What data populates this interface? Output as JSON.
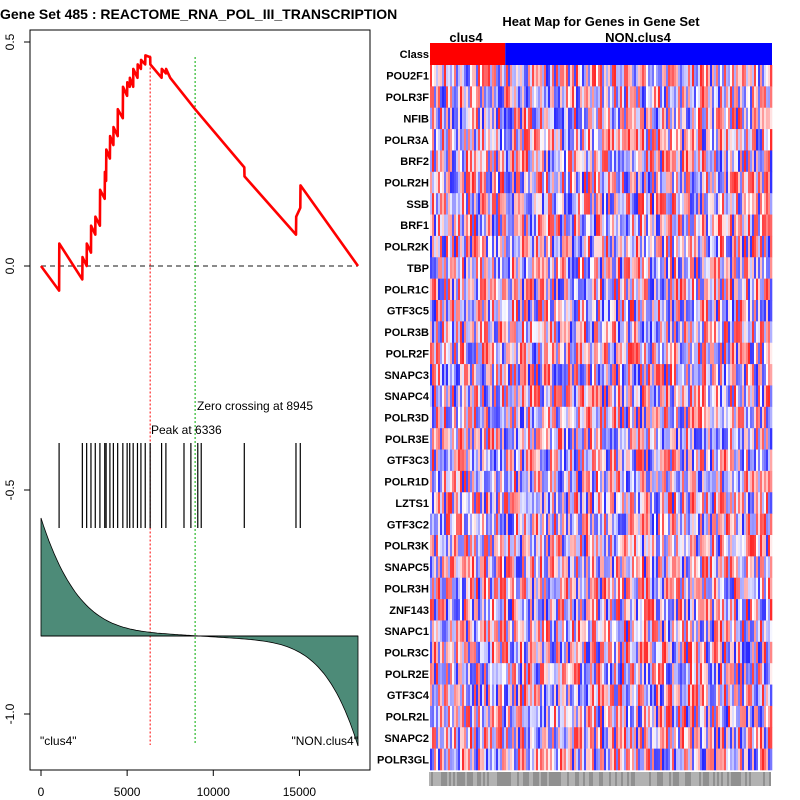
{
  "left_panel": {
    "title": "Gene Set  485 : REACTOME_RNA_POL_III_TRANSCRIPTION",
    "peak_label": "Peak at 6336",
    "zero_label": "Zero crossing at 8945",
    "class_left": "\"clus4\"",
    "class_right": "\"NON.clus4\""
  },
  "right_panel": {
    "title": "Heat Map for Genes in Gene Set",
    "class_row_label": "Class",
    "group_left": "clus4",
    "group_right": "NON.clus4",
    "genes": [
      "POU2F1",
      "POLR3F",
      "NFIB",
      "POLR3A",
      "BRF2",
      "POLR2H",
      "SSB",
      "BRF1",
      "POLR2K",
      "TBP",
      "POLR1C",
      "GTF3C5",
      "POLR3B",
      "POLR2F",
      "SNAPC3",
      "SNAPC4",
      "POLR3D",
      "POLR3E",
      "GTF3C3",
      "POLR1D",
      "LZTS1",
      "GTF3C2",
      "POLR3K",
      "SNAPC5",
      "POLR3H",
      "ZNF143",
      "SNAPC1",
      "POLR3C",
      "POLR2E",
      "GTF3C4",
      "POLR2L",
      "SNAPC2",
      "POLR3GL"
    ]
  },
  "colors": {
    "es_line": "#ff0000",
    "peak_line": "#ff0000",
    "zero_line": "#00aa00",
    "metric_fill": "#4d8b78",
    "class_a": "#ff0000",
    "class_b": "#0000ff"
  },
  "chart_data": [
    {
      "type": "line",
      "title": "Gene Set  485 : REACTOME_RNA_POL_III_TRANSCRIPTION",
      "xlabel": "",
      "ylabel": "",
      "xlim": [
        0,
        18400
      ],
      "ylim": [
        -1.07,
        0.52
      ],
      "x_ticks": [
        0,
        5000,
        10000,
        15000
      ],
      "y_ticks": [
        -1.0,
        -0.5,
        0.0,
        0.5
      ],
      "series": [
        {
          "name": "Running enrichment score",
          "x": [
            0,
            1050,
            1060,
            2400,
            2410,
            2650,
            2660,
            2900,
            2910,
            3150,
            3160,
            3420,
            3430,
            3700,
            3710,
            3780,
            3790,
            4000,
            4010,
            4200,
            4210,
            4450,
            4460,
            4750,
            4760,
            5000,
            5010,
            5150,
            5160,
            5350,
            5360,
            5600,
            5610,
            5800,
            5810,
            6050,
            6060,
            6336,
            6346,
            7000,
            7010,
            7250,
            7260,
            7500,
            8945,
            11800,
            11810,
            14800,
            14810,
            15050,
            15060,
            18400
          ],
          "values": [
            0.0,
            -0.055,
            0.05,
            -0.03,
            0.02,
            0.0,
            0.05,
            0.03,
            0.09,
            0.07,
            0.11,
            0.09,
            0.17,
            0.15,
            0.21,
            0.19,
            0.26,
            0.24,
            0.29,
            0.27,
            0.31,
            0.29,
            0.35,
            0.33,
            0.4,
            0.38,
            0.41,
            0.4,
            0.42,
            0.4,
            0.44,
            0.42,
            0.45,
            0.44,
            0.46,
            0.45,
            0.47,
            0.466,
            0.45,
            0.42,
            0.44,
            0.43,
            0.44,
            0.42,
            0.35,
            0.22,
            0.2,
            0.07,
            0.11,
            0.13,
            0.18,
            0.0
          ]
        }
      ],
      "hits": [
        1050,
        2400,
        2650,
        2900,
        3150,
        3420,
        3700,
        3780,
        4000,
        4200,
        4450,
        4750,
        5000,
        5150,
        5350,
        5600,
        5800,
        6050,
        6336,
        7000,
        7250,
        8300,
        8700,
        9100,
        9300,
        11800,
        14800,
        15050
      ],
      "peak_x": 6336,
      "zero_crossing_x": 8945,
      "annotations": [
        "Peak at 6336",
        "Zero crossing at 8945",
        "\"clus4\"",
        "\"NON.clus4\""
      ]
    },
    {
      "type": "heatmap",
      "title": "Heat Map for Genes in Gene Set",
      "rows": [
        "POU2F1",
        "POLR3F",
        "NFIB",
        "POLR3A",
        "BRF2",
        "POLR2H",
        "SSB",
        "BRF1",
        "POLR2K",
        "TBP",
        "POLR1C",
        "GTF3C5",
        "POLR3B",
        "POLR2F",
        "SNAPC3",
        "SNAPC4",
        "POLR3D",
        "POLR3E",
        "GTF3C3",
        "POLR1D",
        "LZTS1",
        "GTF3C2",
        "POLR3K",
        "SNAPC5",
        "POLR3H",
        "ZNF143",
        "SNAPC1",
        "POLR3C",
        "POLR2E",
        "GTF3C4",
        "POLR2L",
        "SNAPC2",
        "POLR3GL"
      ],
      "column_groups": [
        {
          "name": "clus4",
          "fraction": 0.22
        },
        {
          "name": "NON.clus4",
          "fraction": 0.78
        }
      ],
      "color_scale": [
        "#0000ff",
        "#ffffff",
        "#ff0000"
      ]
    }
  ]
}
